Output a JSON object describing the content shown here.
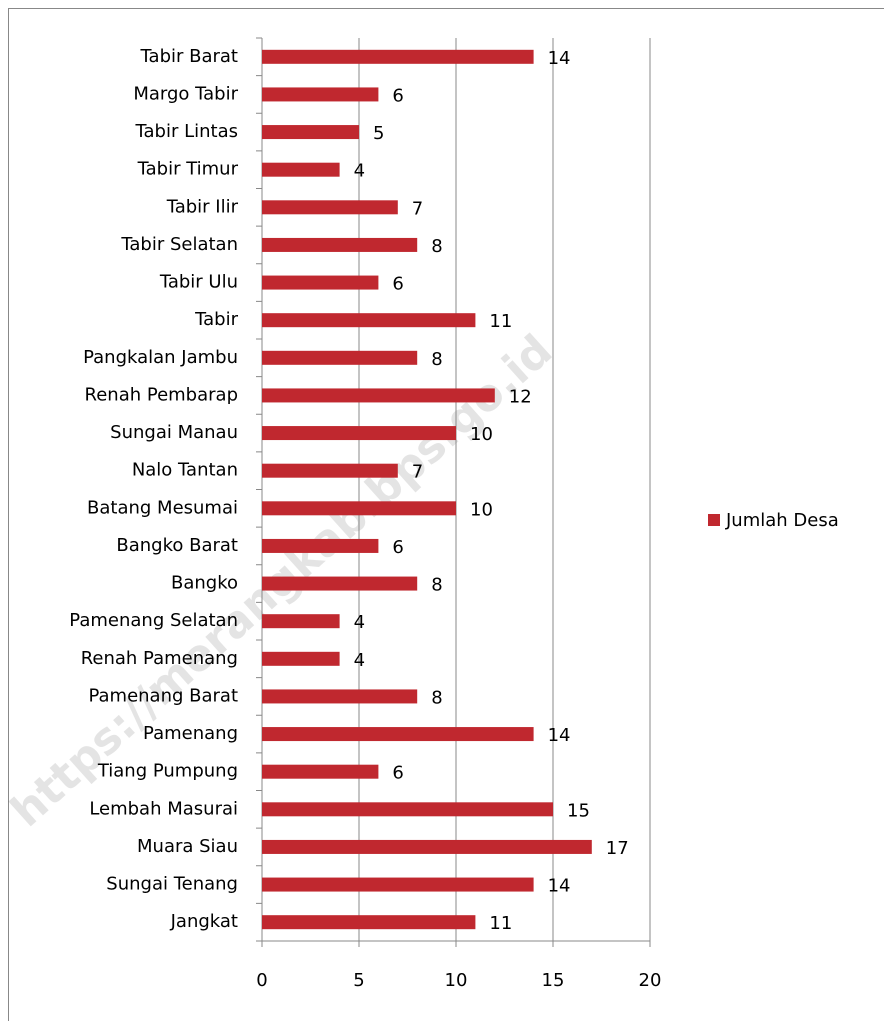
{
  "chart_data": {
    "type": "bar",
    "orientation": "horizontal",
    "categories": [
      "Tabir Barat",
      "Margo Tabir",
      "Tabir Lintas",
      "Tabir Timur",
      "Tabir Ilir",
      "Tabir Selatan",
      "Tabir Ulu",
      "Tabir",
      "Pangkalan Jambu",
      "Renah Pembarap",
      "Sungai Manau",
      "Nalo Tantan",
      "Batang Mesumai",
      "Bangko Barat",
      "Bangko",
      "Pamenang Selatan",
      "Renah Pamenang",
      "Pamenang Barat",
      "Pamenang",
      "Tiang Pumpung",
      "Lembah Masurai",
      "Muara Siau",
      "Sungai Tenang",
      "Jangkat"
    ],
    "series": [
      {
        "name": "Jumlah Desa",
        "color": "#c0282f",
        "values": [
          14,
          6,
          5,
          4,
          7,
          8,
          6,
          11,
          8,
          12,
          10,
          7,
          10,
          6,
          8,
          4,
          4,
          8,
          14,
          6,
          15,
          17,
          14,
          11
        ]
      }
    ],
    "xlim": [
      0,
      20
    ],
    "xticks": [
      0,
      5,
      10,
      15,
      20
    ],
    "grid": true,
    "legend": "right",
    "watermark": "https://merangkab.bps.go.id"
  }
}
